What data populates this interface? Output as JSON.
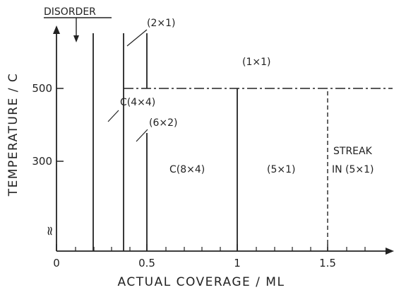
{
  "diagram": {
    "x_axis": {
      "title": "ACTUAL COVERAGE / ML",
      "ticks": [
        {
          "value": 0,
          "label": "0"
        },
        {
          "value": 0.5,
          "label": "0.5"
        },
        {
          "value": 1,
          "label": "1"
        },
        {
          "value": 1.5,
          "label": "1.5"
        }
      ],
      "range": [
        0,
        1.85
      ]
    },
    "y_axis": {
      "title": "TEMPERATURE / C",
      "ticks": [
        {
          "value": 300,
          "label": "300"
        },
        {
          "value": 500,
          "label": "500"
        }
      ],
      "break_marker": "≈"
    },
    "annotation": {
      "disorder_label": "DISORDER"
    },
    "phase_labels": {
      "p2x1": "(2×1)",
      "p1x1": "(1×1)",
      "c4x4": "C(4×4)",
      "p6x2": "(6×2)",
      "c8x4": "C(8×4)",
      "p5x1": "(5×1)",
      "streak_line1": "STREAK",
      "streak_line2": "IN (5×1)"
    },
    "boundaries": [
      {
        "x": 0.2,
        "style": "solid"
      },
      {
        "x": 0.37,
        "style": "solid"
      },
      {
        "x": 0.5,
        "style": "solid"
      },
      {
        "x": 1.0,
        "style": "solid"
      },
      {
        "x": 1.5,
        "style": "dashed"
      }
    ],
    "transition_line": {
      "temperature": 500,
      "x_from": 0.37,
      "style": "dash-dot"
    },
    "colors": {
      "ink": "#222222",
      "background": "#ffffff"
    }
  }
}
